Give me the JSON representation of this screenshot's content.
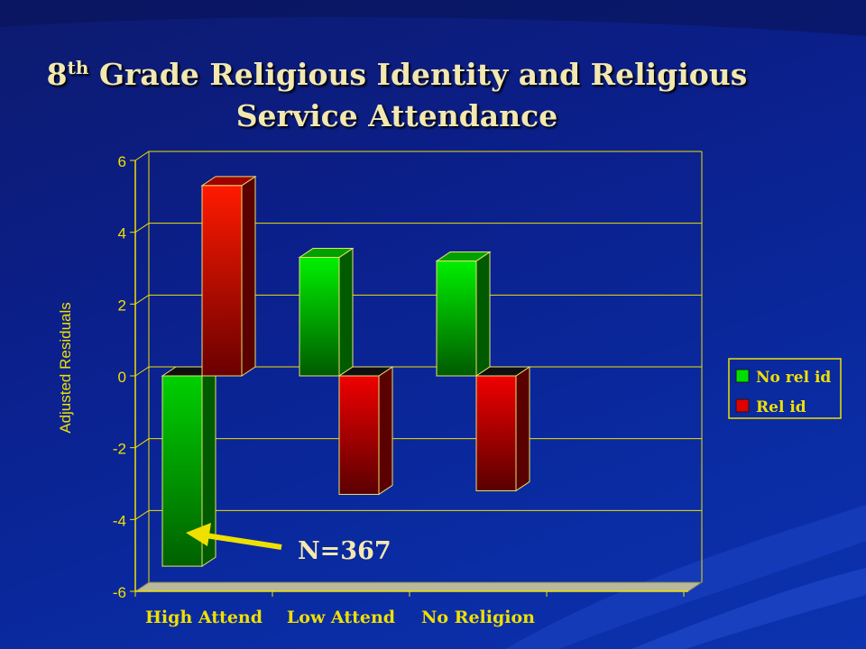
{
  "title": {
    "prefix": "8",
    "superscript": "th",
    "line1_rest": " Grade Religious Identity and Religious",
    "line2": "Service Attendance"
  },
  "colors": {
    "background": "#0b2396",
    "axis": "#f0e000",
    "green": "#00e000",
    "red": "#e00000",
    "annotation": "#f4e8b0"
  },
  "chart_data": {
    "type": "bar",
    "title": "8th Grade Religious Identity and Religious Service Attendance",
    "xlabel": "",
    "ylabel": "Adjusted Residuals",
    "categories": [
      "High Attend",
      "Low Attend",
      "No Religion"
    ],
    "series": [
      {
        "name": "No rel id",
        "color": "#00e000",
        "values": [
          -5.3,
          3.3,
          3.2
        ]
      },
      {
        "name": "Rel id",
        "color": "#e00000",
        "values": [
          5.3,
          -3.3,
          -3.2
        ]
      }
    ],
    "ylim": [
      -6,
      6
    ],
    "yticks": [
      "6",
      "4",
      "2",
      "0",
      "-2",
      "-4",
      "-6"
    ],
    "grid": true,
    "legend_position": "right",
    "annotation": "N=367"
  }
}
